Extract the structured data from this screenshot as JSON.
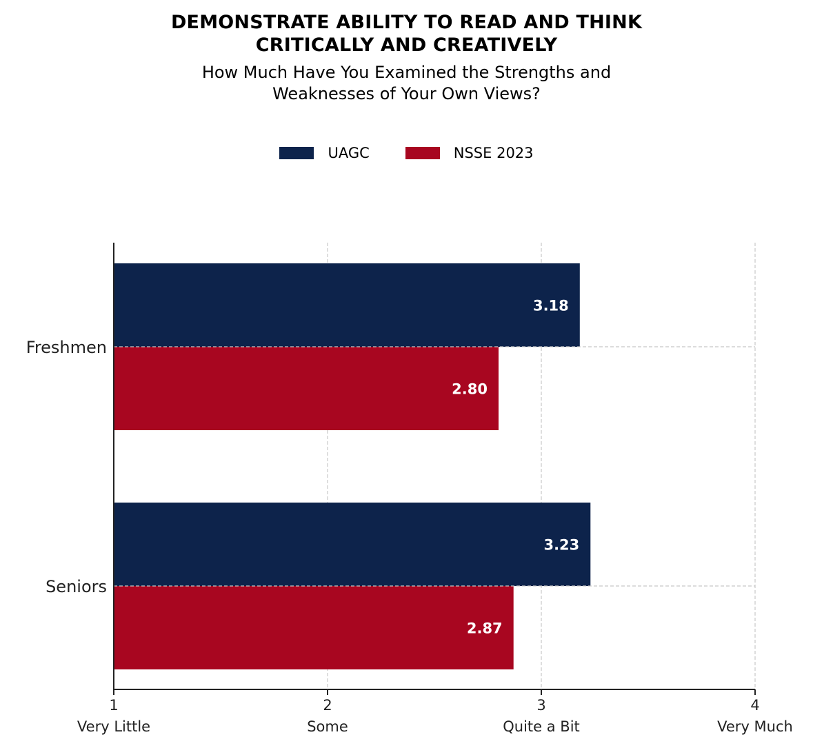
{
  "chart_data": {
    "type": "bar",
    "orientation": "horizontal",
    "title_lines": [
      "DEMONSTRATE ABILITY TO READ AND THINK",
      "CRITICALLY AND CREATIVELY"
    ],
    "subtitle_lines": [
      "How Much Have You Examined the Strengths and",
      "Weaknesses of Your Own Views?"
    ],
    "categories": [
      "Freshmen",
      "Seniors"
    ],
    "series": [
      {
        "name": "UAGC",
        "color": "#0d234b",
        "values": [
          3.18,
          3.23
        ],
        "labels": [
          "3.18",
          "3.23"
        ]
      },
      {
        "name": "NSSE 2023",
        "color": "#a80620",
        "values": [
          2.8,
          2.87
        ],
        "labels": [
          "2.80",
          "2.87"
        ]
      }
    ],
    "xlim": [
      1,
      4
    ],
    "x_ticks": [
      {
        "value": 1,
        "label": "1",
        "sublabel": "Very Little"
      },
      {
        "value": 2,
        "label": "2",
        "sublabel": "Some"
      },
      {
        "value": 3,
        "label": "3",
        "sublabel": "Quite a Bit"
      },
      {
        "value": 4,
        "label": "4",
        "sublabel": "Very Much"
      }
    ],
    "grid": true,
    "legend_position": "top-center"
  }
}
